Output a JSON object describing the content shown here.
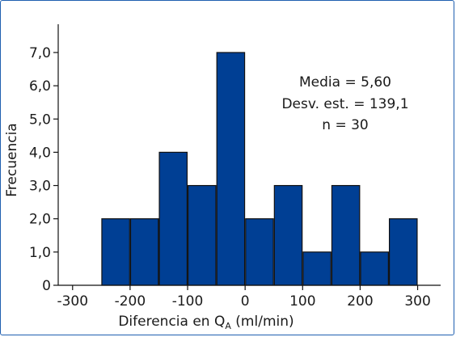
{
  "chart_data": {
    "type": "bar",
    "xlabel": "Diferencia en Q",
    "xlabel_subscript": "A",
    "xlabel_suffix": " (ml/min)",
    "ylabel": "Frecuencia",
    "xlim": [
      -325,
      340
    ],
    "ylim": [
      0,
      7.85
    ],
    "grid": false,
    "bar_color": "#003f94",
    "bar_edge_color": "#111111",
    "x_ticks": [
      {
        "value": -300,
        "label": "-300"
      },
      {
        "value": -200,
        "label": "-200"
      },
      {
        "value": -100,
        "label": "-100"
      },
      {
        "value": 0,
        "label": "0"
      },
      {
        "value": 100,
        "label": "100"
      },
      {
        "value": 200,
        "label": "200"
      },
      {
        "value": 300,
        "label": "300"
      }
    ],
    "y_ticks": [
      {
        "value": 0,
        "label": "0"
      },
      {
        "value": 1,
        "label": "1,0"
      },
      {
        "value": 2,
        "label": "2,0"
      },
      {
        "value": 3,
        "label": "3,0"
      },
      {
        "value": 4,
        "label": "4,0"
      },
      {
        "value": 5,
        "label": "5,0"
      },
      {
        "value": 6,
        "label": "6,0"
      },
      {
        "value": 7,
        "label": "7,0"
      }
    ],
    "bins": [
      {
        "x0": -250,
        "x1": -200,
        "count": 2
      },
      {
        "x0": -200,
        "x1": -150,
        "count": 2
      },
      {
        "x0": -150,
        "x1": -100,
        "count": 4
      },
      {
        "x0": -100,
        "x1": -50,
        "count": 3
      },
      {
        "x0": -50,
        "x1": 0,
        "count": 7
      },
      {
        "x0": 0,
        "x1": 50,
        "count": 2
      },
      {
        "x0": 50,
        "x1": 100,
        "count": 3
      },
      {
        "x0": 100,
        "x1": 150,
        "count": 1
      },
      {
        "x0": 150,
        "x1": 200,
        "count": 3
      },
      {
        "x0": 200,
        "x1": 250,
        "count": 1
      },
      {
        "x0": 250,
        "x1": 300,
        "count": 2
      }
    ],
    "annotations": [
      "Media = 5,60",
      "Desv. est. = 139,1",
      "n = 30"
    ]
  }
}
